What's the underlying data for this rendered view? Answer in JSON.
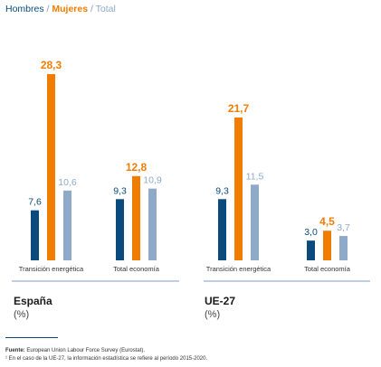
{
  "legend": {
    "hombres": "Hombres",
    "sep1": " / ",
    "mujeres": "Mujeres",
    "sep2": " / ",
    "total": "Total"
  },
  "colors": {
    "hombres": "#0a4a7d",
    "mujeres": "#f07d00",
    "total": "#8fa9c9",
    "axis": "#7f9cc3"
  },
  "chart_data": [
    {
      "type": "bar",
      "title": "España",
      "subtitle": "(%)",
      "categories": [
        "Transición energética",
        "Total economía"
      ],
      "series": [
        {
          "name": "Hombres",
          "values": [
            7.6,
            9.3
          ],
          "labels": [
            "7,6",
            "9,3"
          ]
        },
        {
          "name": "Mujeres",
          "values": [
            28.3,
            12.8
          ],
          "labels": [
            "28,3",
            "12,8"
          ]
        },
        {
          "name": "Total",
          "values": [
            10.6,
            10.9
          ],
          "labels": [
            "10,6",
            "10,9"
          ]
        }
      ],
      "ylim": [
        0,
        28.3
      ]
    },
    {
      "type": "bar",
      "title": "UE-27",
      "subtitle": "(%)",
      "categories": [
        "Transición energética",
        "Total economía"
      ],
      "series": [
        {
          "name": "Hombres",
          "values": [
            9.3,
            3.0
          ],
          "labels": [
            "9,3",
            "3,0"
          ]
        },
        {
          "name": "Mujeres",
          "values": [
            21.7,
            4.5
          ],
          "labels": [
            "21,7",
            "4,5"
          ]
        },
        {
          "name": "Total",
          "values": [
            11.5,
            3.7
          ],
          "labels": [
            "11,5",
            "3,7"
          ]
        }
      ],
      "ylim": [
        0,
        28.3
      ]
    }
  ],
  "footnotes": {
    "source_label": "Fuente:",
    "source_text": " European Union Labour Force Survey (Eurostat).",
    "note": "¹ En el caso de la UE-27, la información estadística se refiere al período 2015-2020."
  }
}
